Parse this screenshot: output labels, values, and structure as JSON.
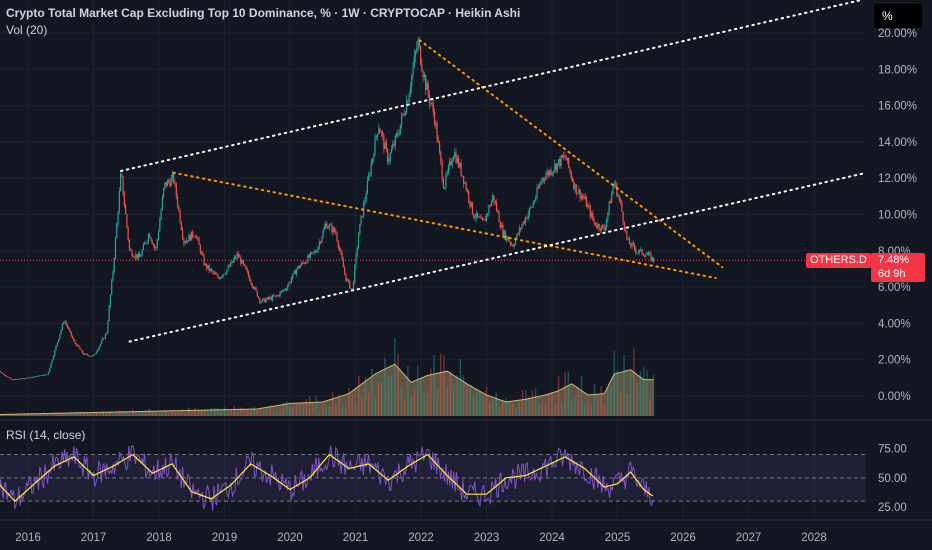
{
  "header": {
    "title": "Crypto Total Market Cap Excluding Top 10 Dominance, % · 1W · CRYPTOCAP · Heikin Ashi",
    "volume_label": "Vol (20)",
    "rsi_label": "RSI (14, close)",
    "unit_button": "%"
  },
  "last_price": {
    "ticker": "OTHERS.D",
    "value": "7.48%",
    "countdown": "6d 9h",
    "color": "#f23645"
  },
  "colors": {
    "background": "#131722",
    "up": "#26a69a",
    "down": "#ef5350",
    "rsi_line": "#7e57c2",
    "rsi_ma": "#ffeb3b",
    "trendline_white": "#ffffff",
    "trendline_orange": "#ff9800",
    "volume_ma_fill": "#9c8a62"
  },
  "chart_data": [
    {
      "type": "candlestick",
      "title": "Crypto Total Market Cap Excluding Top 10 Dominance, % · 1W · CRYPTOCAP · Heikin Ashi",
      "y_unit": "%",
      "y_ticks": [
        "20.00%",
        "18.00%",
        "16.00%",
        "14.00%",
        "12.00%",
        "10.00%",
        "8.00%",
        "6.00%",
        "4.00%",
        "2.00%",
        "0.00%"
      ],
      "x_ticks": [
        "2016",
        "2017",
        "2018",
        "2019",
        "2020",
        "2021",
        "2022",
        "2023",
        "2024",
        "2025",
        "2026",
        "2027",
        "2028"
      ],
      "last_value": 7.48,
      "series_points": [
        [
          2015.5,
          1.5
        ],
        [
          2015.75,
          0.9
        ],
        [
          2016.0,
          1.0
        ],
        [
          2016.3,
          1.2
        ],
        [
          2016.55,
          4.2
        ],
        [
          2016.7,
          3.0
        ],
        [
          2016.85,
          2.3
        ],
        [
          2017.0,
          2.2
        ],
        [
          2017.2,
          3.5
        ],
        [
          2017.3,
          7.0
        ],
        [
          2017.42,
          12.3
        ],
        [
          2017.55,
          8.0
        ],
        [
          2017.7,
          7.6
        ],
        [
          2017.85,
          9.0
        ],
        [
          2017.95,
          8.0
        ],
        [
          2018.08,
          11.6
        ],
        [
          2018.22,
          12.0
        ],
        [
          2018.38,
          8.5
        ],
        [
          2018.55,
          9.0
        ],
        [
          2018.7,
          7.2
        ],
        [
          2018.9,
          6.5
        ],
        [
          2019.05,
          7.0
        ],
        [
          2019.2,
          7.8
        ],
        [
          2019.38,
          6.5
        ],
        [
          2019.55,
          5.2
        ],
        [
          2019.8,
          5.5
        ],
        [
          2019.95,
          6.0
        ],
        [
          2020.1,
          7.0
        ],
        [
          2020.25,
          7.5
        ],
        [
          2020.4,
          8.0
        ],
        [
          2020.55,
          9.5
        ],
        [
          2020.7,
          9.0
        ],
        [
          2020.85,
          6.5
        ],
        [
          2020.95,
          5.8
        ],
        [
          2021.05,
          9.0
        ],
        [
          2021.2,
          12.0
        ],
        [
          2021.35,
          15.0
        ],
        [
          2021.5,
          13.0
        ],
        [
          2021.65,
          14.5
        ],
        [
          2021.8,
          16.5
        ],
        [
          2021.95,
          19.5
        ],
        [
          2022.08,
          17.0
        ],
        [
          2022.2,
          15.5
        ],
        [
          2022.35,
          11.5
        ],
        [
          2022.5,
          13.5
        ],
        [
          2022.65,
          12.0
        ],
        [
          2022.8,
          10.0
        ],
        [
          2022.95,
          9.5
        ],
        [
          2023.1,
          11.0
        ],
        [
          2023.25,
          9.0
        ],
        [
          2023.4,
          8.3
        ],
        [
          2023.55,
          9.5
        ],
        [
          2023.7,
          10.5
        ],
        [
          2023.85,
          12.0
        ],
        [
          2024.0,
          12.5
        ],
        [
          2024.2,
          13.2
        ],
        [
          2024.35,
          11.5
        ],
        [
          2024.5,
          10.8
        ],
        [
          2024.65,
          9.5
        ],
        [
          2024.8,
          9.2
        ],
        [
          2024.95,
          11.8
        ],
        [
          2025.05,
          10.5
        ],
        [
          2025.15,
          8.5
        ],
        [
          2025.3,
          8.0
        ],
        [
          2025.45,
          7.8
        ],
        [
          2025.55,
          7.48
        ]
      ],
      "trendlines": [
        {
          "color": "orange",
          "from": [
            2021.98,
            19.6
          ],
          "to": [
            2026.6,
            7.1
          ]
        },
        {
          "color": "orange",
          "from": [
            2018.22,
            12.3
          ],
          "to": [
            2026.5,
            6.5
          ]
        },
        {
          "color": "white",
          "from": [
            2017.42,
            12.4
          ],
          "to": [
            2028.7,
            21.8
          ]
        },
        {
          "color": "white",
          "from": [
            2017.55,
            3.0
          ],
          "to": [
            2028.8,
            12.3
          ]
        }
      ]
    },
    {
      "type": "area",
      "title": "Vol (20)",
      "note": "volume bars with moving-average area",
      "levels": [
        [
          2015.5,
          0.1
        ],
        [
          2016.5,
          0.2
        ],
        [
          2017.5,
          0.3
        ],
        [
          2018.5,
          0.4
        ],
        [
          2019.5,
          0.5
        ],
        [
          2020.0,
          0.9
        ],
        [
          2020.5,
          1.0
        ],
        [
          2020.9,
          1.6
        ],
        [
          2021.3,
          3.0
        ],
        [
          2021.6,
          3.7
        ],
        [
          2021.85,
          2.4
        ],
        [
          2022.1,
          2.9
        ],
        [
          2022.4,
          3.2
        ],
        [
          2022.7,
          2.3
        ],
        [
          2023.0,
          1.5
        ],
        [
          2023.3,
          1.0
        ],
        [
          2023.6,
          1.2
        ],
        [
          2023.9,
          1.5
        ],
        [
          2024.1,
          1.8
        ],
        [
          2024.3,
          2.3
        ],
        [
          2024.55,
          1.5
        ],
        [
          2024.8,
          1.6
        ],
        [
          2024.95,
          3.0
        ],
        [
          2025.2,
          3.3
        ],
        [
          2025.4,
          2.6
        ],
        [
          2025.55,
          2.6
        ]
      ]
    },
    {
      "type": "line",
      "title": "RSI (14, close)",
      "y_ticks": [
        "75.00",
        "50.00",
        "25.00"
      ],
      "band": [
        30,
        70
      ],
      "rsi_ma_points": [
        [
          2015.5,
          48
        ],
        [
          2015.8,
          30
        ],
        [
          2016.1,
          45
        ],
        [
          2016.4,
          60
        ],
        [
          2016.7,
          68
        ],
        [
          2017.0,
          52
        ],
        [
          2017.3,
          60
        ],
        [
          2017.6,
          70
        ],
        [
          2017.9,
          54
        ],
        [
          2018.2,
          62
        ],
        [
          2018.5,
          38
        ],
        [
          2018.8,
          32
        ],
        [
          2019.1,
          44
        ],
        [
          2019.4,
          62
        ],
        [
          2019.7,
          52
        ],
        [
          2020.0,
          40
        ],
        [
          2020.3,
          50
        ],
        [
          2020.6,
          70
        ],
        [
          2020.9,
          58
        ],
        [
          2021.2,
          62
        ],
        [
          2021.5,
          48
        ],
        [
          2021.8,
          60
        ],
        [
          2022.1,
          70
        ],
        [
          2022.4,
          52
        ],
        [
          2022.7,
          36
        ],
        [
          2023.0,
          36
        ],
        [
          2023.3,
          50
        ],
        [
          2023.6,
          52
        ],
        [
          2023.9,
          60
        ],
        [
          2024.2,
          68
        ],
        [
          2024.5,
          58
        ],
        [
          2024.8,
          42
        ],
        [
          2025.0,
          45
        ],
        [
          2025.2,
          55
        ],
        [
          2025.4,
          40
        ],
        [
          2025.55,
          34
        ]
      ]
    }
  ]
}
